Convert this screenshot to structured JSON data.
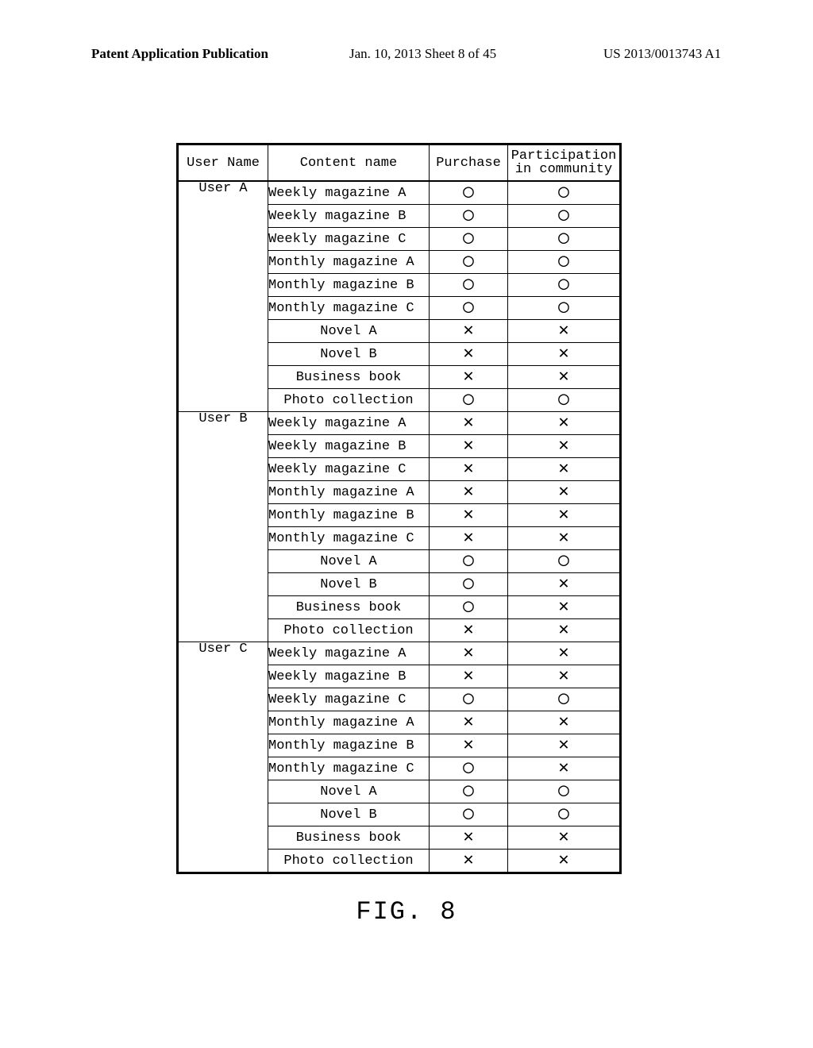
{
  "header": {
    "left": "Patent Application Publication",
    "center": "Jan. 10, 2013  Sheet 8 of 45",
    "right": "US 2013/0013743 A1"
  },
  "figure_caption": "FIG. 8",
  "marks": {
    "circle": "◯",
    "cross": "✕"
  },
  "table": {
    "columns": [
      "User Name",
      "Content name",
      "Purchase",
      "Participation in community"
    ],
    "content_names_centered": [
      "Novel A",
      "Novel B",
      "Business book",
      "Photo collection"
    ],
    "groups": [
      {
        "user": "User A",
        "rows": [
          {
            "content": "Weekly magazine A",
            "purchase": "O",
            "participation": "O"
          },
          {
            "content": "Weekly magazine B",
            "purchase": "O",
            "participation": "O"
          },
          {
            "content": "Weekly magazine C",
            "purchase": "O",
            "participation": "O"
          },
          {
            "content": "Monthly magazine A",
            "purchase": "O",
            "participation": "O"
          },
          {
            "content": "Monthly magazine B",
            "purchase": "O",
            "participation": "O"
          },
          {
            "content": "Monthly magazine C",
            "purchase": "O",
            "participation": "O"
          },
          {
            "content": "Novel A",
            "purchase": "X",
            "participation": "X"
          },
          {
            "content": "Novel B",
            "purchase": "X",
            "participation": "X"
          },
          {
            "content": "Business book",
            "purchase": "X",
            "participation": "X"
          },
          {
            "content": "Photo collection",
            "purchase": "O",
            "participation": "O"
          }
        ]
      },
      {
        "user": "User B",
        "rows": [
          {
            "content": "Weekly magazine A",
            "purchase": "X",
            "participation": "X"
          },
          {
            "content": "Weekly magazine B",
            "purchase": "X",
            "participation": "X"
          },
          {
            "content": "Weekly magazine C",
            "purchase": "X",
            "participation": "X"
          },
          {
            "content": "Monthly magazine A",
            "purchase": "X",
            "participation": "X"
          },
          {
            "content": "Monthly magazine B",
            "purchase": "X",
            "participation": "X"
          },
          {
            "content": "Monthly magazine C",
            "purchase": "X",
            "participation": "X"
          },
          {
            "content": "Novel A",
            "purchase": "O",
            "participation": "O"
          },
          {
            "content": "Novel B",
            "purchase": "O",
            "participation": "X"
          },
          {
            "content": "Business book",
            "purchase": "O",
            "participation": "X"
          },
          {
            "content": "Photo collection",
            "purchase": "X",
            "participation": "X"
          }
        ]
      },
      {
        "user": "User C",
        "rows": [
          {
            "content": "Weekly magazine A",
            "purchase": "X",
            "participation": "X"
          },
          {
            "content": "Weekly magazine B",
            "purchase": "X",
            "participation": "X"
          },
          {
            "content": "Weekly magazine C",
            "purchase": "O",
            "participation": "O"
          },
          {
            "content": "Monthly magazine A",
            "purchase": "X",
            "participation": "X"
          },
          {
            "content": "Monthly magazine B",
            "purchase": "X",
            "participation": "X"
          },
          {
            "content": "Monthly magazine C",
            "purchase": "O",
            "participation": "X"
          },
          {
            "content": "Novel A",
            "purchase": "O",
            "participation": "O"
          },
          {
            "content": "Novel B",
            "purchase": "O",
            "participation": "O"
          },
          {
            "content": "Business book",
            "purchase": "X",
            "participation": "X"
          },
          {
            "content": "Photo collection",
            "purchase": "X",
            "participation": "X"
          }
        ]
      }
    ]
  }
}
